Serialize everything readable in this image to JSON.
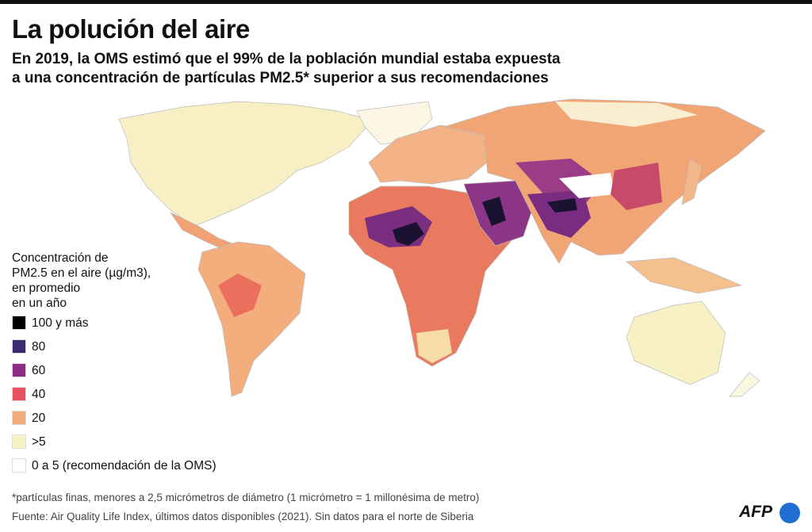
{
  "header": {
    "title": "La polución del aire",
    "subtitle": [
      "En 2019, la OMS estimó que el 99% de la población mundial estaba expuesta",
      "a una concentración de partículas PM2.5* superior a sus recomendaciones"
    ]
  },
  "legend": {
    "title": [
      "Concentración de",
      "PM2.5 en el aire (µg/m3),",
      "en promedio",
      "en un año"
    ],
    "items": [
      {
        "label": "100 y más",
        "color": "#000000"
      },
      {
        "label": "80",
        "color": "#3b2a6e"
      },
      {
        "label": "60",
        "color": "#8e2c8a"
      },
      {
        "label": "40",
        "color": "#e8515e"
      },
      {
        "label": "20",
        "color": "#f4ab7c"
      },
      {
        "label": ">5",
        "color": "#f7f3c4"
      },
      {
        "label": "0 a 5 (recomendación de la OMS)",
        "color": "#ffffff"
      }
    ]
  },
  "footer": {
    "note": "*partículas finas, menores a 2,5 micrómetros de diámetro (1 micrómetro = 1 millonésima de metro)",
    "source": "Fuente: Air Quality Life Index, últimos datos disponibles (2021). Sin datos para el norte de Siberia"
  },
  "logo": "AFP"
}
